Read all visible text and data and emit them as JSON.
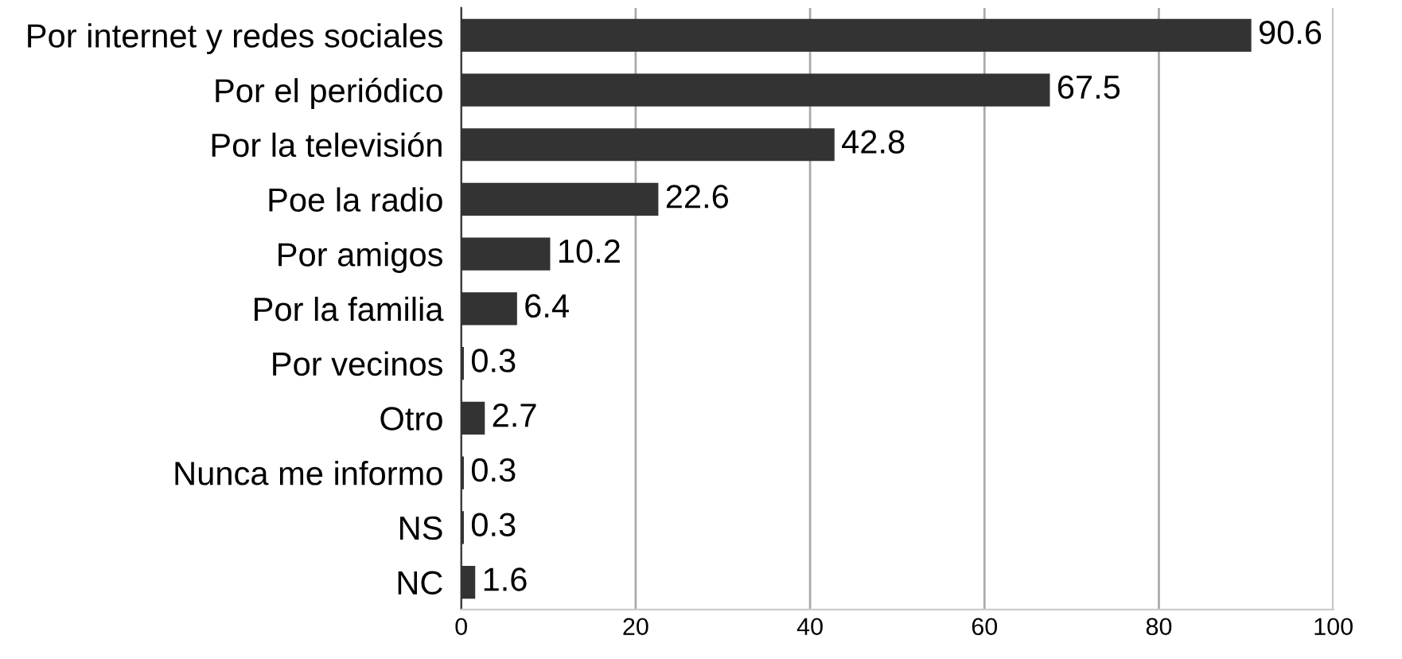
{
  "chart_data": {
    "type": "bar",
    "orientation": "horizontal",
    "categories": [
      "Por internet y redes sociales",
      "Por el periódico",
      "Por la televisión",
      "Poe la radio",
      "Por amigos",
      "Por la familia",
      "Por vecinos",
      "Otro",
      "Nunca me informo",
      "NS",
      "NC"
    ],
    "values": [
      90.6,
      67.5,
      42.8,
      22.6,
      10.2,
      6.4,
      0.3,
      2.7,
      0.3,
      0.3,
      1.6
    ],
    "color": "#333333",
    "xlim": [
      0,
      100
    ],
    "xticks": [
      0,
      20,
      40,
      60,
      80,
      100
    ],
    "grid": "x",
    "data_labels": true,
    "legend": false
  }
}
